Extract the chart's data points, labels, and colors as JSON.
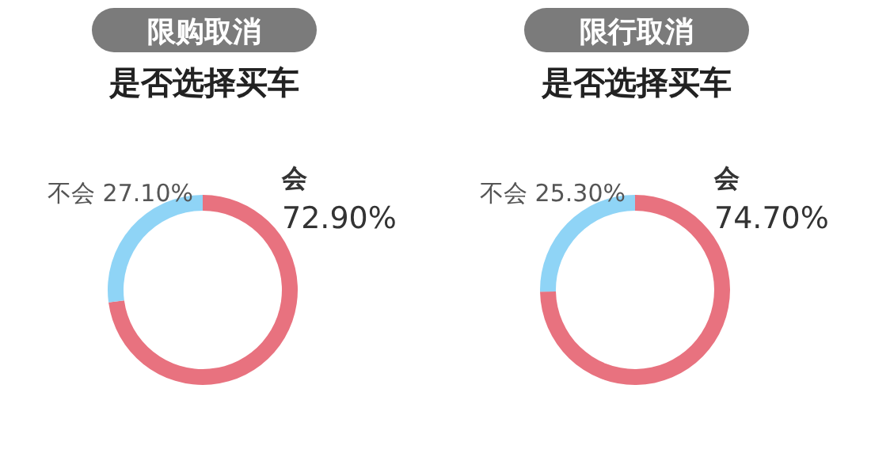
{
  "chart_data": [
    {
      "type": "donut",
      "title": "限购取消",
      "subtitle": "是否选择买车",
      "categories": [
        "会",
        "不会"
      ],
      "values": [
        72.9,
        27.1
      ],
      "colors": [
        "#e8727f",
        "#8fd4f6"
      ],
      "value_labels": [
        "72.90%",
        "27.10%"
      ],
      "legend": false
    },
    {
      "type": "donut",
      "title": "限行取消",
      "subtitle": "是否选择买车",
      "categories": [
        "会",
        "不会"
      ],
      "values": [
        74.7,
        25.3
      ],
      "colors": [
        "#e8727f",
        "#8fd4f6"
      ],
      "value_labels": [
        "74.70%",
        "25.30%"
      ],
      "legend": false
    }
  ]
}
